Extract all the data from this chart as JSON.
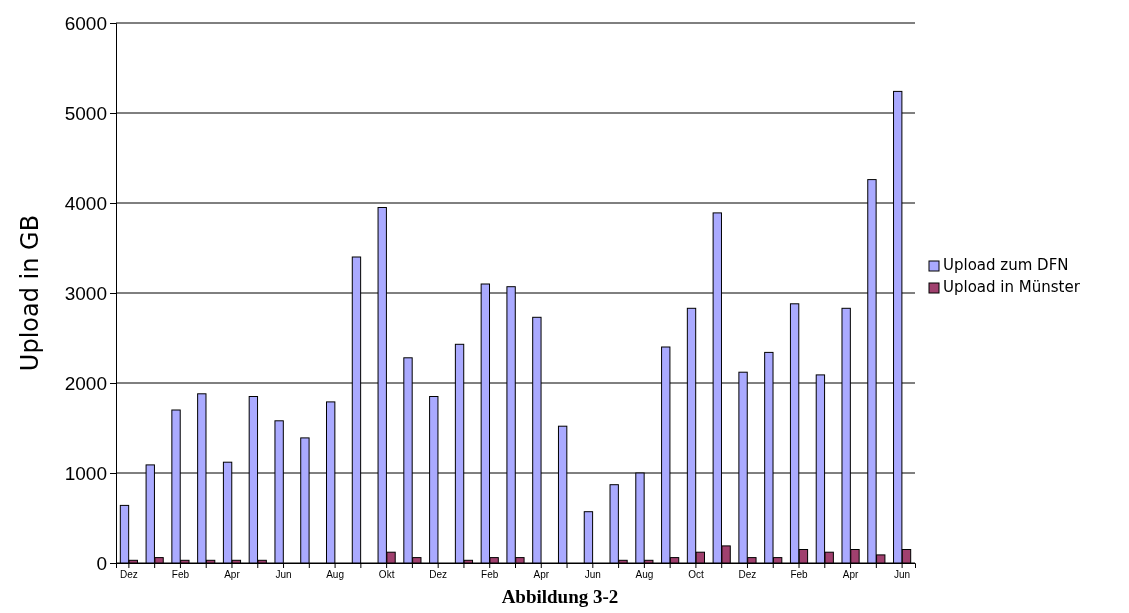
{
  "chart_data": {
    "type": "bar",
    "ylabel": "Upload in GB",
    "categories": [
      "Dez",
      null,
      "Feb",
      null,
      "Apr",
      null,
      "Jun",
      null,
      "Aug",
      null,
      "Okt",
      null,
      "Dez",
      null,
      "Feb",
      null,
      "Apr",
      null,
      "Jun",
      null,
      "Aug",
      null,
      "Oct",
      null,
      "Dez",
      null,
      "Feb",
      null,
      "Apr",
      null,
      "Jun"
    ],
    "series": [
      {
        "name": "Upload zum DFN",
        "color": "#aaaaff",
        "values": [
          640,
          1090,
          1700,
          1880,
          1120,
          1850,
          1580,
          1390,
          1790,
          3400,
          3950,
          2280,
          1850,
          2430,
          3100,
          3070,
          2730,
          1520,
          570,
          870,
          1000,
          2400,
          2830,
          3890,
          2120,
          2340,
          2880,
          2090,
          2830,
          4260,
          5240
        ]
      },
      {
        "name": "Upload in Münster",
        "color": "#a0406e",
        "values": [
          30,
          60,
          30,
          30,
          30,
          30,
          0,
          0,
          0,
          0,
          120,
          60,
          0,
          30,
          60,
          60,
          0,
          0,
          0,
          30,
          30,
          60,
          120,
          190,
          60,
          60,
          150,
          120,
          150,
          90,
          150
        ]
      }
    ],
    "ylim": [
      0,
      6000
    ],
    "yticks": [
      0,
      1000,
      2000,
      3000,
      4000,
      5000,
      6000
    ],
    "grid": "y",
    "legend": "right",
    "annotations": [
      "Abbildung 3-2"
    ]
  }
}
